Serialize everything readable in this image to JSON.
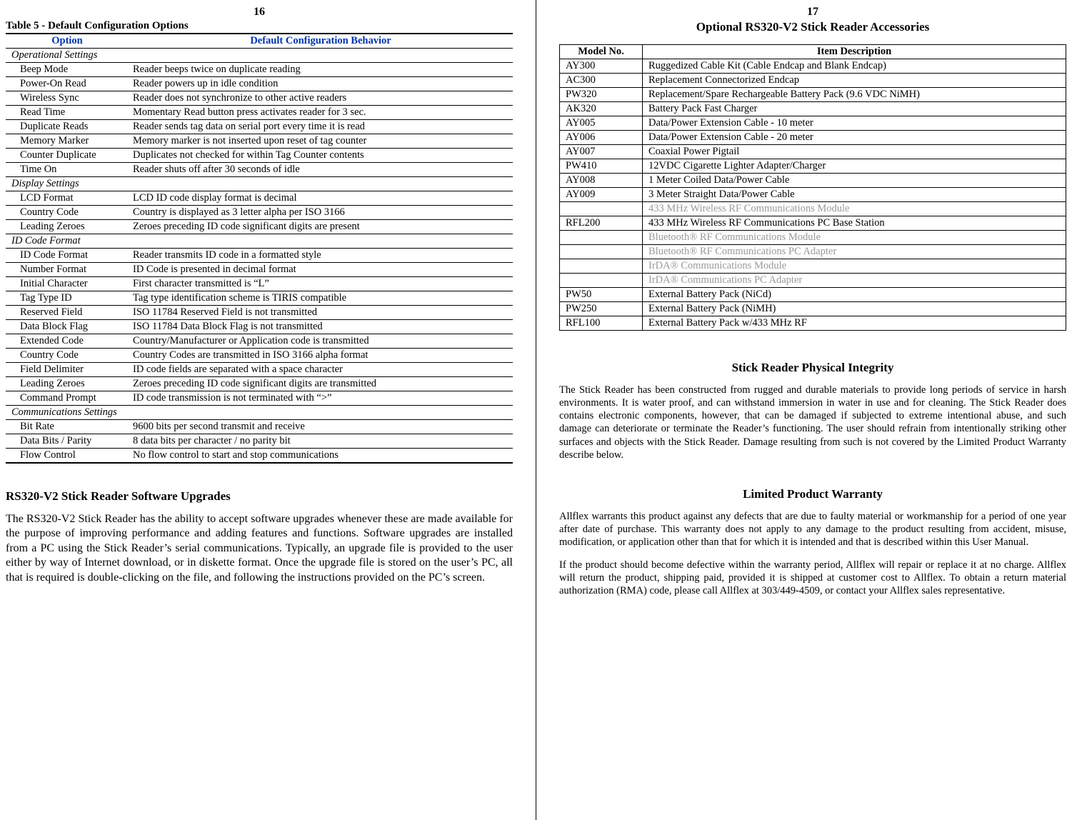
{
  "left": {
    "page_no": "16",
    "table_title": "Table 5  -  Default Configuration Options",
    "headers": {
      "option": "Option",
      "behavior": "Default Configuration Behavior"
    },
    "rows": [
      {
        "section": true,
        "label": "Operational Settings"
      },
      {
        "option": "Beep Mode",
        "behavior": "Reader beeps twice on duplicate reading"
      },
      {
        "option": "Power-On Read",
        "behavior": "Reader powers up in idle condition"
      },
      {
        "option": "Wireless Sync",
        "behavior": "Reader does not synchronize to other active readers"
      },
      {
        "option": "Read Time",
        "behavior": "Momentary Read button press activates reader for 3 sec."
      },
      {
        "option": "Duplicate Reads",
        "behavior": "Reader sends tag data on serial port every time it is read"
      },
      {
        "option": "Memory Marker",
        "behavior": "Memory marker is not inserted upon reset of tag counter"
      },
      {
        "option": "Counter Duplicate",
        "behavior": "Duplicates not checked for within Tag Counter contents"
      },
      {
        "option": "Time On",
        "behavior": "Reader shuts off after 30 seconds of idle"
      },
      {
        "section": true,
        "label": "Display Settings"
      },
      {
        "option": "LCD Format",
        "behavior": "LCD ID code display format is decimal"
      },
      {
        "option": "Country Code",
        "behavior": "Country is displayed as 3 letter alpha per ISO 3166"
      },
      {
        "option": "Leading Zeroes",
        "behavior": "Zeroes preceding ID code significant digits are present"
      },
      {
        "section": true,
        "label": "ID Code Format"
      },
      {
        "option": "ID Code Format",
        "behavior": "Reader transmits ID code in a formatted style"
      },
      {
        "option": "Number Format",
        "behavior": "ID Code is presented in decimal format"
      },
      {
        "option": "Initial Character",
        "behavior": "First character transmitted is “L”"
      },
      {
        "option": "Tag Type ID",
        "behavior": "Tag type identification scheme is TIRIS compatible"
      },
      {
        "option": "Reserved Field",
        "behavior": "ISO 11784 Reserved Field is not transmitted"
      },
      {
        "option": "Data Block Flag",
        "behavior": "ISO 11784 Data Block Flag is not transmitted"
      },
      {
        "option": "Extended Code",
        "behavior": "Country/Manufacturer or Application code is transmitted"
      },
      {
        "option": "Country Code",
        "behavior": "Country Codes are transmitted in ISO 3166 alpha format"
      },
      {
        "option": "Field Delimiter",
        "behavior": "ID code fields are separated with a space character"
      },
      {
        "option": "Leading Zeroes",
        "behavior": "Zeroes preceding ID code significant digits are transmitted"
      },
      {
        "option": "Command Prompt",
        "behavior": "ID code transmission is not terminated with “>”"
      },
      {
        "section": true,
        "label": "Communications Settings"
      },
      {
        "option": "Bit Rate",
        "behavior": "9600 bits per second transmit and receive"
      },
      {
        "option": "Data Bits / Parity",
        "behavior": "8 data bits per character / no parity bit"
      },
      {
        "option": "Flow Control",
        "behavior": "No flow control to start and stop communications",
        "last": true
      }
    ],
    "upgrade_heading": "RS320-V2 Stick Reader Software Upgrades",
    "upgrade_body": "The RS320-V2 Stick Reader has the ability to accept software upgrades whenever these are made available for the purpose of improving performance and adding features and functions.  Software upgrades are installed from a PC using the Stick Reader’s serial communications.  Typically, an upgrade file is provided to the user either by way of Internet download, or in diskette format.  Once the upgrade file is stored on the user’s PC, all that is required is double-clicking on the file, and following the instructions provided on the PC’s screen."
  },
  "right": {
    "page_no": "17",
    "title": "Optional RS320-V2 Stick Reader Accessories",
    "headers": {
      "model": "Model No.",
      "desc": "Item Description"
    },
    "rows": [
      {
        "model": "AY300",
        "desc": "Ruggedized Cable Kit (Cable Endcap and Blank Endcap)"
      },
      {
        "model": "AC300",
        "desc": "Replacement Connectorized Endcap"
      },
      {
        "model": "PW320",
        "desc": "Replacement/Spare Rechargeable Battery Pack (9.6 VDC NiMH)"
      },
      {
        "model": "AK320",
        "desc": "Battery Pack Fast Charger"
      },
      {
        "model": "AY005",
        "desc": "Data/Power Extension Cable - 10 meter"
      },
      {
        "model": "AY006",
        "desc": "Data/Power Extension Cable - 20 meter"
      },
      {
        "model": "AY007",
        "desc": "Coaxial Power Pigtail"
      },
      {
        "model": "PW410",
        "desc": "12VDC Cigarette Lighter Adapter/Charger"
      },
      {
        "model": "AY008",
        "desc": "1 Meter Coiled Data/Power Cable"
      },
      {
        "model": "AY009",
        "desc": "3 Meter Straight Data/Power Cable"
      },
      {
        "model": "",
        "desc": "433 MHz Wireless RF Communications Module",
        "grey": true
      },
      {
        "model": "RFL200",
        "desc": "433 MHz Wireless RF Communications PC Base Station"
      },
      {
        "model": "",
        "desc": "Bluetooth® RF Communications Module",
        "grey": true
      },
      {
        "model": "",
        "desc": "Bluetooth® RF Communications PC Adapter",
        "grey": true
      },
      {
        "model": "",
        "desc": "IrDA® Communications Module",
        "grey": true
      },
      {
        "model": "",
        "desc": "IrDA® Communications PC Adapter",
        "grey": true
      },
      {
        "model": "PW50",
        "desc": "External Battery Pack (NiCd)"
      },
      {
        "model": "PW250",
        "desc": "External Battery Pack (NiMH)"
      },
      {
        "model": "RFL100",
        "desc": "External Battery Pack w/433 MHz RF"
      }
    ],
    "integrity_heading": "Stick Reader Physical Integrity",
    "integrity_body": "The Stick Reader has been constructed from rugged and durable materials to provide long periods of service in harsh environments.  It is water proof, and can withstand immersion in water in use and for cleaning.  The Stick Reader does contains electronic components, however, that can be damaged if subjected to extreme intentional abuse, and such damage can deteriorate or terminate the Reader’s functioning.  The user should refrain from intentionally striking other surfaces and objects with the Stick Reader.  Damage resulting from such is not covered by the Limited Product Warranty describe below.",
    "warranty_heading": "Limited Product Warranty",
    "warranty_p1": "Allflex warrants this product against any defects that are due to faulty material or workmanship for a period of one year after date of purchase.  This warranty does not apply to any damage to the product resulting from accident, misuse, modification, or application other than that for which it is intended and that is described within this User Manual.",
    "warranty_p2": "If the product should become defective within the warranty period, Allflex will repair or replace it at no charge.  Allflex will return the product, shipping paid, provided it is shipped at customer cost to Allflex.  To obtain a return material authorization (RMA) code, please call Allflex at 303/449-4509, or contact your Allflex sales representative."
  },
  "styling": {
    "header_text_color": "#0033aa",
    "grey_text_color": "#999999",
    "border_color": "#000000",
    "background_color": "#ffffff",
    "body_font": "Times New Roman"
  }
}
